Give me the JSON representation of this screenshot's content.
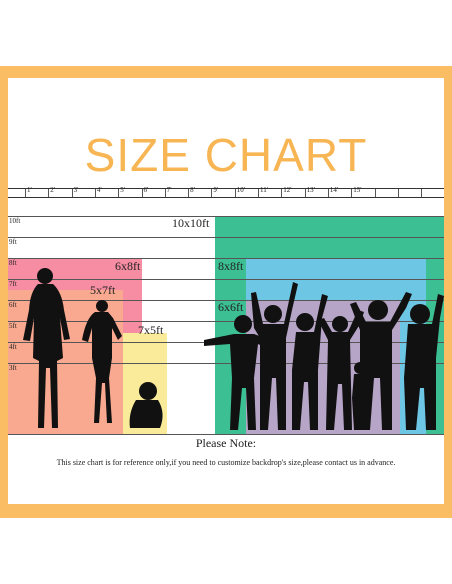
{
  "title": "SIZE CHART",
  "colors": {
    "frame": "#fbbd63",
    "title": "#f7b553",
    "box_10x10": "#3bbf93",
    "box_8x8": "#6dc7e4",
    "box_6x6": "#b7a5c7",
    "box_8x6": "#f78da3",
    "box_5x7": "#f9a98f",
    "box_7x5": "#faeb9b",
    "silhouette": "#111111"
  },
  "ruler": {
    "labels": [
      "1'",
      "2'",
      "3'",
      "4'",
      "5'",
      "6'",
      "7'",
      "8'",
      "9'",
      "10'",
      "11'",
      "12'",
      "13'",
      "14'",
      "15'"
    ]
  },
  "height_labels": [
    "10ft",
    "9ft",
    "8ft",
    "7ft",
    "6ft",
    "5ft",
    "4ft",
    "3ft"
  ],
  "sizes": {
    "s10x10": "10x10ft",
    "s8x8": "8x8ft",
    "s6x6": "6x6ft",
    "s6x8": "6x8ft",
    "s5x7": "5x7ft",
    "s7x5": "7x5ft"
  },
  "note": {
    "title": "Please Note:",
    "text": "This size chart is for reference only,if you need to customize backdrop's size,please contact us in advance."
  }
}
